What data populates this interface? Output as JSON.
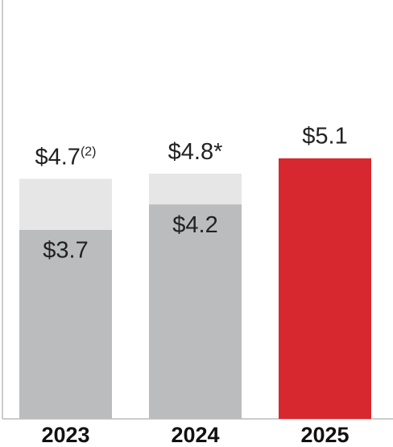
{
  "chart_data": {
    "type": "stacked-bar",
    "categories": [
      "2023",
      "2024",
      "2025"
    ],
    "series": [
      {
        "color": "#bbbcbe",
        "values": [
          3.7,
          4.2,
          null
        ],
        "value_labels": [
          "$3.7",
          "$4.2",
          null
        ]
      },
      {
        "color": "#e6e6e6",
        "values": [
          1.0,
          0.6,
          null
        ]
      },
      {
        "color": "#d7282f",
        "values": [
          null,
          null,
          5.1
        ],
        "value_labels": [
          null,
          null,
          "$5.1"
        ]
      }
    ],
    "totals": [
      4.7,
      4.8,
      null
    ],
    "total_labels": [
      "$4.7",
      "$4.8*",
      null
    ],
    "total_footnotes": [
      "(2)",
      null,
      null
    ],
    "ylim": [
      0,
      8.2
    ]
  }
}
